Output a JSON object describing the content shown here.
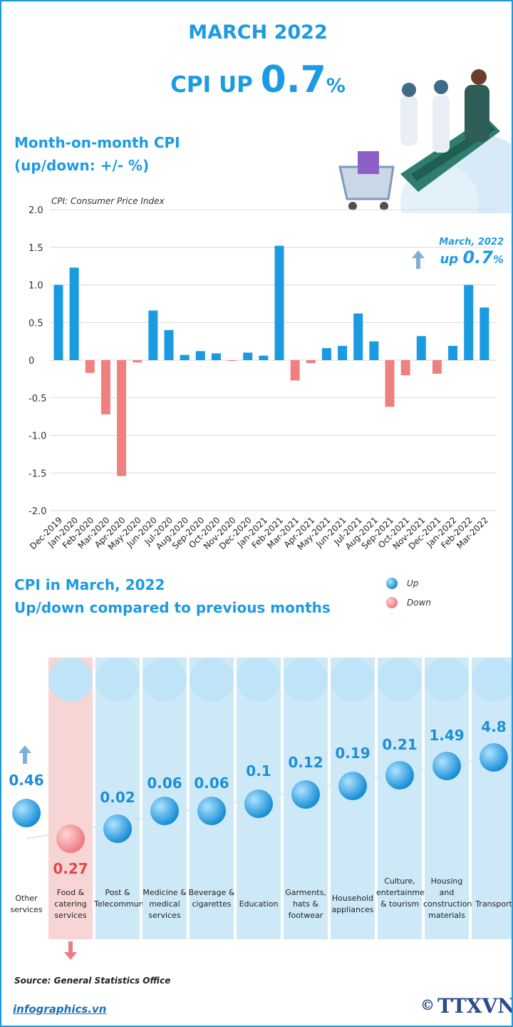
{
  "header": {
    "title": "MARCH 2022",
    "cpi_prefix": "CPI UP ",
    "cpi_value": "0.7",
    "cpi_unit": "%"
  },
  "chart_section": {
    "title_line1": "Month-on-month CPI",
    "title_line2": "(up/down: +/- %)",
    "note": "CPI: Consumer Price Index"
  },
  "callout": {
    "label": "March, 2022",
    "prefix": "up ",
    "value": "0.7",
    "unit": "%"
  },
  "chart_data": {
    "type": "bar",
    "categories": [
      "Dec-2019",
      "Jan-2020",
      "Feb-2020",
      "Mar-2020",
      "Apr-2020",
      "May-2020",
      "Jun-2020",
      "Jul-2020",
      "Aug-2020",
      "Sep-2020",
      "Oct-2020",
      "Nov-2020",
      "Dec-2020",
      "Jan-2021",
      "Feb-2021",
      "Mar-2021",
      "Apr-2021",
      "May-2021",
      "Jun-2021",
      "Jul-2021",
      "Aug-2021",
      "Sep-2021",
      "Oct-2021",
      "Nov-2021",
      "Dec-2021",
      "Jan-2022",
      "Feb-2022",
      "Mar-2022"
    ],
    "values": [
      1.0,
      1.23,
      -0.17,
      -0.72,
      -1.54,
      -0.03,
      0.66,
      0.4,
      0.07,
      0.12,
      0.09,
      -0.01,
      0.1,
      0.06,
      1.52,
      -0.27,
      -0.04,
      0.16,
      0.19,
      0.62,
      0.25,
      -0.62,
      -0.2,
      0.32,
      -0.18,
      0.19,
      1.0,
      0.7
    ],
    "ylim": [
      -2.0,
      2.0
    ],
    "yticks": [
      "2.0",
      "1.5",
      "1.0",
      "0.5",
      "0",
      "-0.5",
      "-1.0",
      "-1.5",
      "-2.0"
    ],
    "grid": true,
    "colors": {
      "up": "#1a9ae0",
      "down": "#f08080"
    }
  },
  "groups_section": {
    "title_line1": "CPI in March, 2022",
    "title_line2": "Up/down compared to previous months",
    "legend_up": "Up",
    "legend_down": "Down"
  },
  "groups": [
    {
      "name": "Other services",
      "value": "0.46",
      "num": 0.46,
      "dir": "up",
      "icon": "none"
    },
    {
      "name": "Food & catering services",
      "value": "0.27",
      "num": -0.27,
      "dir": "down",
      "icon": "food-plate-icon"
    },
    {
      "name": "Post & Telecommunications",
      "value": "0.02",
      "num": 0.02,
      "dir": "up",
      "icon": "antenna-tower-icon"
    },
    {
      "name": "Medicine & medical services",
      "value": "0.06",
      "num": 0.06,
      "dir": "up",
      "icon": "pill-icon"
    },
    {
      "name": "Beverage & cigarettes",
      "value": "0.06",
      "num": 0.06,
      "dir": "up",
      "icon": "beverage-icon"
    },
    {
      "name": "Education",
      "value": "0.1",
      "num": 0.1,
      "dir": "up",
      "icon": "graduation-cap-icon"
    },
    {
      "name": "Garments, hats & footwear",
      "value": "0.12",
      "num": 0.12,
      "dir": "up",
      "icon": "shirt-shoes-icon"
    },
    {
      "name": "Household appliances",
      "value": "0.19",
      "num": 0.19,
      "dir": "up",
      "icon": "washing-machine-icon"
    },
    {
      "name": "Culture, entertainment & tourism",
      "value": "0.21",
      "num": 0.21,
      "dir": "up",
      "icon": "clapperboard-icon"
    },
    {
      "name": "Housing and construction materials",
      "value": "1.49",
      "num": 1.49,
      "dir": "up",
      "icon": "house-icon"
    },
    {
      "name": "Transport",
      "value": "4.8",
      "num": 4.8,
      "dir": "up",
      "icon": "traffic-light-icon"
    }
  ],
  "footer": {
    "source": "Source: General Statistics Office",
    "site": "infographics.vn",
    "logo_text": "TTXVN",
    "copyright": "©"
  }
}
